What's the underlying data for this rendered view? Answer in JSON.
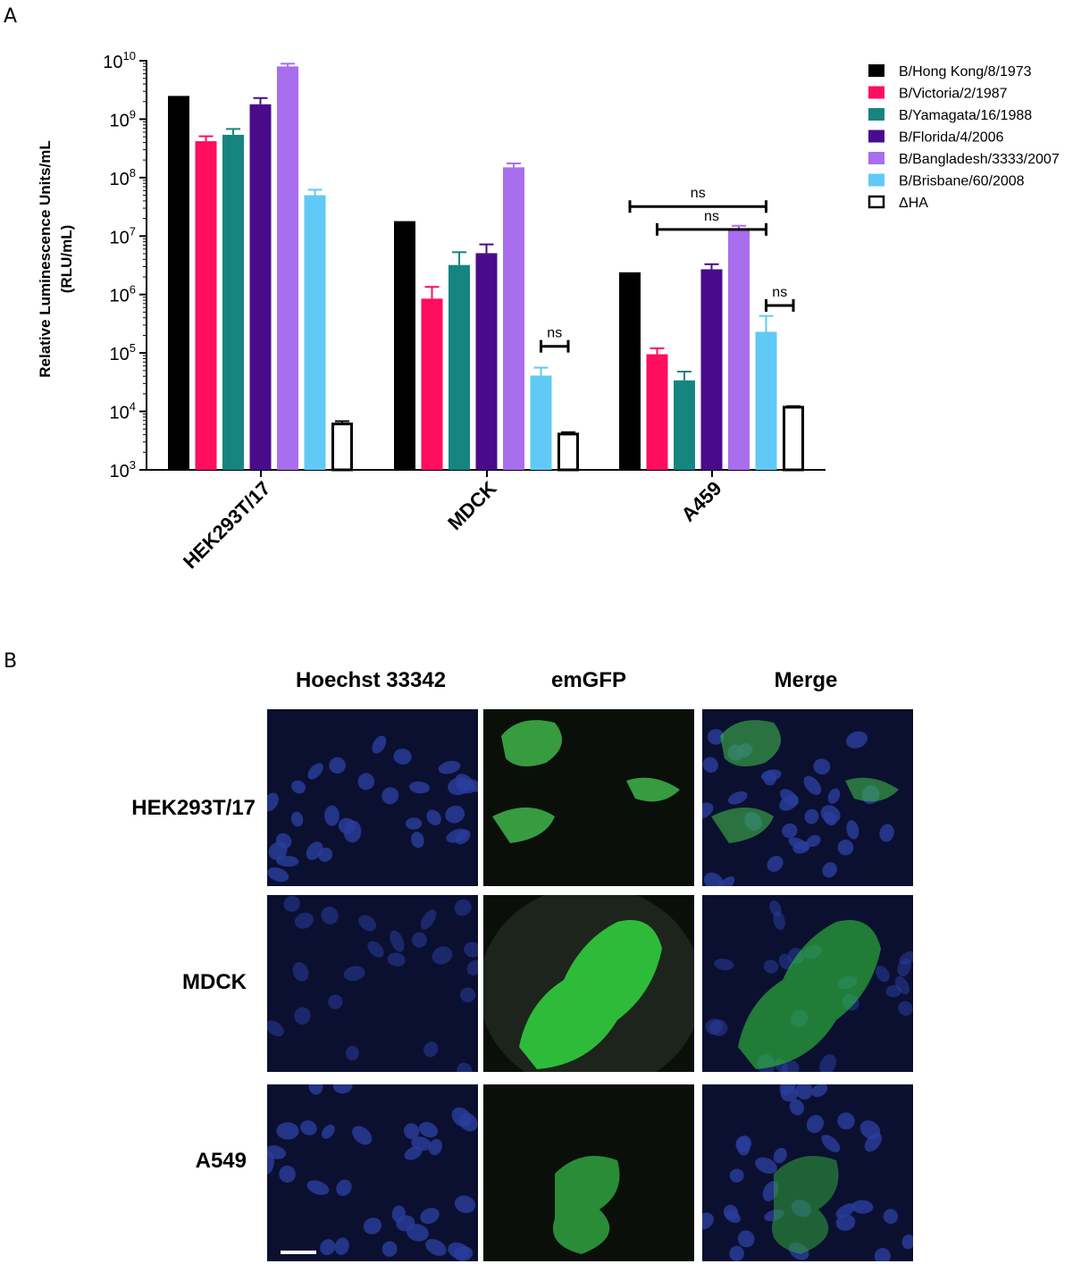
{
  "panel_a_letter": "A",
  "panel_b_letter": "B",
  "chart_data": {
    "type": "bar",
    "categories": [
      "HEK293T/17",
      "MDCK",
      "A459"
    ],
    "ylabel": "Relative Luminescence Units/mL",
    "ylabel2": "(RLU/mL)",
    "yscale": "log",
    "ylim": [
      1000,
      10000000000
    ],
    "yticks": [
      {
        "value": 1000,
        "base": "10",
        "exp": "3"
      },
      {
        "value": 10000,
        "base": "10",
        "exp": "4"
      },
      {
        "value": 100000,
        "base": "10",
        "exp": "5"
      },
      {
        "value": 1000000,
        "base": "10",
        "exp": "6"
      },
      {
        "value": 10000000,
        "base": "10",
        "exp": "7"
      },
      {
        "value": 100000000,
        "base": "10",
        "exp": "8"
      },
      {
        "value": 1000000000,
        "base": "10",
        "exp": "9"
      },
      {
        "value": 10000000000,
        "base": "10",
        "exp": "10"
      }
    ],
    "legend_position": "right",
    "series": [
      {
        "name": "B/Hong Kong/8/1973",
        "color": "#000000",
        "values": [
          2500000000,
          18000000,
          2400000
        ],
        "err": [
          null,
          null,
          null
        ]
      },
      {
        "name": "B/Victoria/2/1987",
        "color": "#ff0d5f",
        "values": [
          420000000,
          850000,
          95000
        ],
        "err": [
          510000000,
          1350000,
          120000
        ]
      },
      {
        "name": "B/Yamagata/16/1988",
        "color": "#168582",
        "values": [
          540000000,
          3200000,
          34000
        ],
        "err": [
          680000000,
          5300000,
          48000
        ]
      },
      {
        "name": "B/Florida/4/2006",
        "color": "#4a0b8a",
        "values": [
          1800000000,
          5100000,
          2700000
        ],
        "err": [
          2300000000,
          7200000,
          3300000
        ]
      },
      {
        "name": "B/Bangladesh/3333/2007",
        "color": "#a86eed",
        "values": [
          8000000000,
          150000000,
          13000000
        ],
        "err": [
          8900000000,
          175000000,
          15000000
        ]
      },
      {
        "name": "B/Brisbane/60/2008",
        "color": "#61c9f5",
        "values": [
          50000000,
          41000,
          230000
        ],
        "err": [
          62000000,
          56000,
          430000
        ]
      },
      {
        "name": "ΔHA",
        "color": "#ffffff",
        "values": [
          6100,
          4100,
          11800
        ],
        "err": [
          6800,
          4400,
          12300
        ]
      }
    ],
    "annotations": [
      {
        "text": "ns",
        "category": "MDCK",
        "from_series": 5,
        "to_series": 6,
        "y": 130000
      },
      {
        "text": "ns",
        "category": "A459",
        "from_series": 0,
        "to_series": 5,
        "y": 32000000
      },
      {
        "text": "ns",
        "category": "A459",
        "from_series": 1,
        "to_series": 5,
        "y": 13000000
      },
      {
        "text": "ns",
        "category": "A459",
        "from_series": 5,
        "to_series": 6,
        "y": 650000
      }
    ]
  },
  "microscopy": {
    "columns": [
      "Hoechst 33342",
      "emGFP",
      "Merge"
    ],
    "rows": [
      "HEK293T/17",
      "MDCK",
      "A549"
    ]
  }
}
